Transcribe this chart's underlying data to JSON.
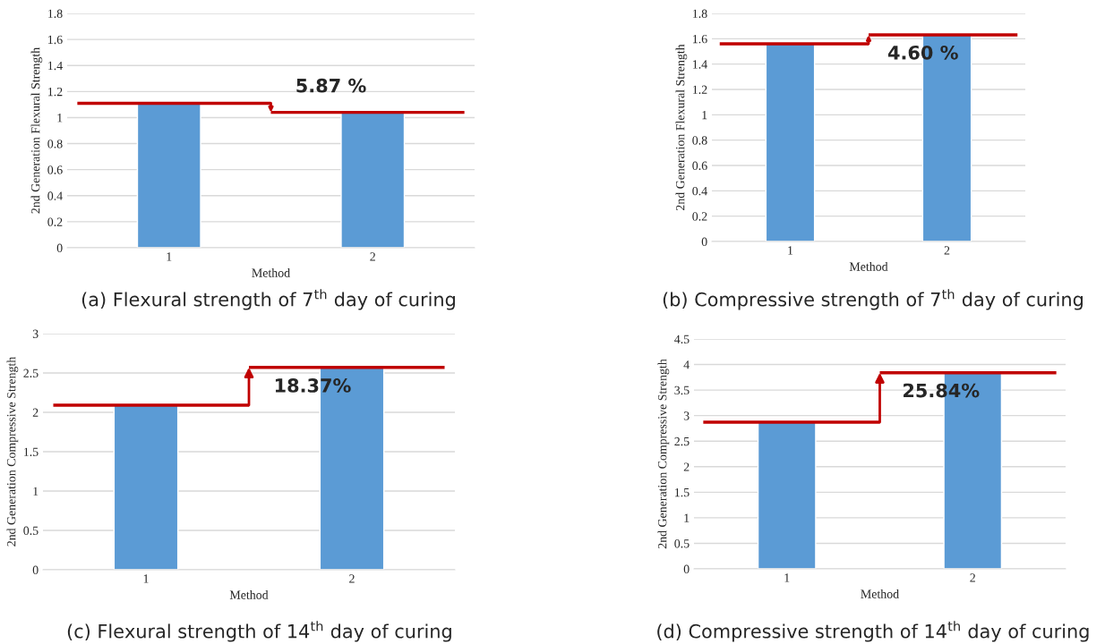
{
  "chart_data": [
    {
      "type": "bar",
      "title": "(a) Flexural strength of 7$^{th}$ day of curing",
      "xlabel": "Method",
      "ylabel": "2nd Generation Flexural Strength",
      "categories": [
        "1",
        "2"
      ],
      "values": [
        1.11,
        1.04
      ],
      "color": "#5b9bd5",
      "ylim": [
        0,
        1.8
      ],
      "yticks": [
        0,
        0.2,
        0.4,
        0.6,
        0.8,
        1,
        1.2,
        1.4,
        1.6,
        1.8
      ],
      "grid": "y",
      "annotations": [
        "5.87 %"
      ],
      "ref_lines": [
        {
          "axis": "y",
          "value": 1.11,
          "color": "#c00000"
        },
        {
          "axis": "y",
          "value": 1.04,
          "color": "#c00000"
        }
      ]
    },
    {
      "type": "bar",
      "title": "(b) Compressive strength of 7$^{th}$ day of curing",
      "xlabel": "Method",
      "ylabel": "2nd Generation Flexural Strength",
      "categories": [
        "1",
        "2"
      ],
      "values": [
        1.56,
        1.63
      ],
      "color": "#5b9bd5",
      "ylim": [
        0,
        1.8
      ],
      "yticks": [
        0,
        0.2,
        0.4,
        0.6,
        0.8,
        1,
        1.2,
        1.4,
        1.6,
        1.8
      ],
      "grid": "y",
      "annotations": [
        "4.60 %"
      ],
      "ref_lines": [
        {
          "axis": "y",
          "value": 1.56,
          "color": "#c00000"
        },
        {
          "axis": "y",
          "value": 1.63,
          "color": "#c00000"
        }
      ]
    },
    {
      "type": "bar",
      "title": "(c) Flexural strength of 14$^{th}$ day of curing",
      "xlabel": "Method",
      "ylabel": "2nd Generation Compressive Strength",
      "categories": [
        "1",
        "2"
      ],
      "values": [
        2.09,
        2.57
      ],
      "color": "#5b9bd5",
      "ylim": [
        0,
        3
      ],
      "yticks": [
        0,
        0.5,
        1,
        1.5,
        2,
        2.5,
        3
      ],
      "grid": "y",
      "annotations": [
        "18.37%"
      ],
      "ref_lines": [
        {
          "axis": "y",
          "value": 2.09,
          "color": "#c00000"
        },
        {
          "axis": "y",
          "value": 2.57,
          "color": "#c00000"
        }
      ]
    },
    {
      "type": "bar",
      "title": "(d) Compressive strength of 14$^{th}$ day of curing",
      "xlabel": "Method",
      "ylabel": "2nd Generation Compressive Strength",
      "categories": [
        "1",
        "2"
      ],
      "values": [
        2.87,
        3.84
      ],
      "color": "#5b9bd5",
      "ylim": [
        0,
        4.5
      ],
      "yticks": [
        0,
        0.5,
        1,
        1.5,
        2,
        2.5,
        3,
        3.5,
        4,
        4.5
      ],
      "grid": "y",
      "annotations": [
        "25.84%"
      ],
      "ref_lines": [
        {
          "axis": "y",
          "value": 2.87,
          "color": "#c00000"
        },
        {
          "axis": "y",
          "value": 3.84,
          "color": "#c00000"
        }
      ]
    }
  ]
}
